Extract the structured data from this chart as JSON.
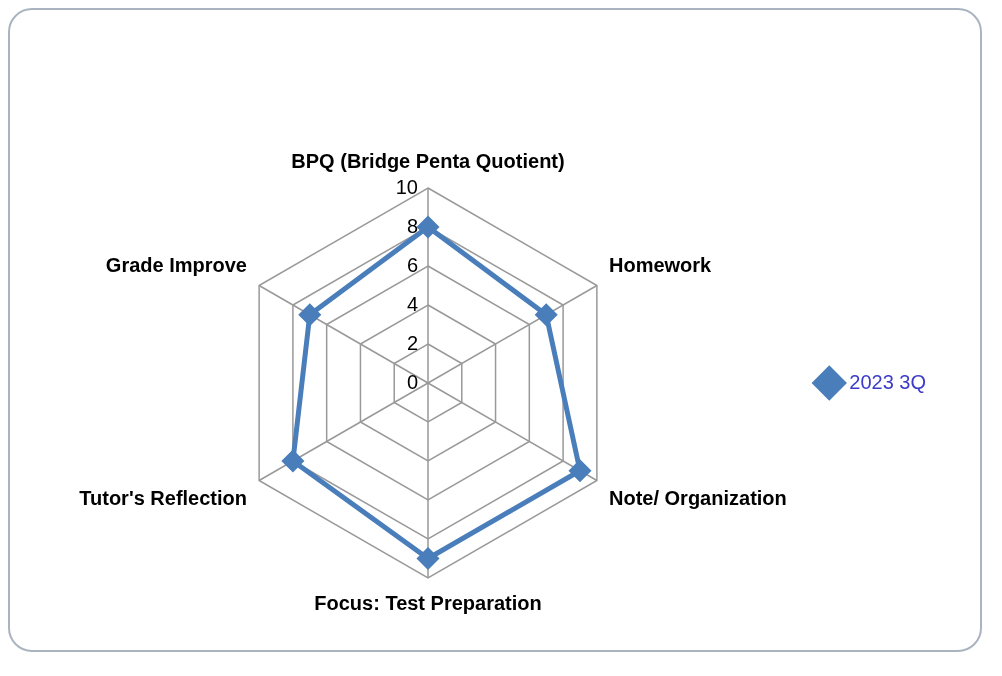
{
  "chart_data": {
    "type": "radar",
    "categories": [
      "BPQ (Bridge Penta Quotient)",
      "Homework",
      "Note/ Organization",
      "Focus: Test Preparation",
      "Tutor's Reflection",
      "Grade Improve"
    ],
    "series": [
      {
        "name": "2023 3Q",
        "color": "#4a7ebb",
        "values": [
          8,
          7,
          9,
          9,
          8,
          7
        ]
      }
    ],
    "ylim": [
      0,
      10
    ],
    "yticks": [
      0,
      2,
      4,
      6,
      8,
      10
    ],
    "grid": true,
    "legend": "right",
    "marker": "diamond",
    "line_style": "solid"
  }
}
